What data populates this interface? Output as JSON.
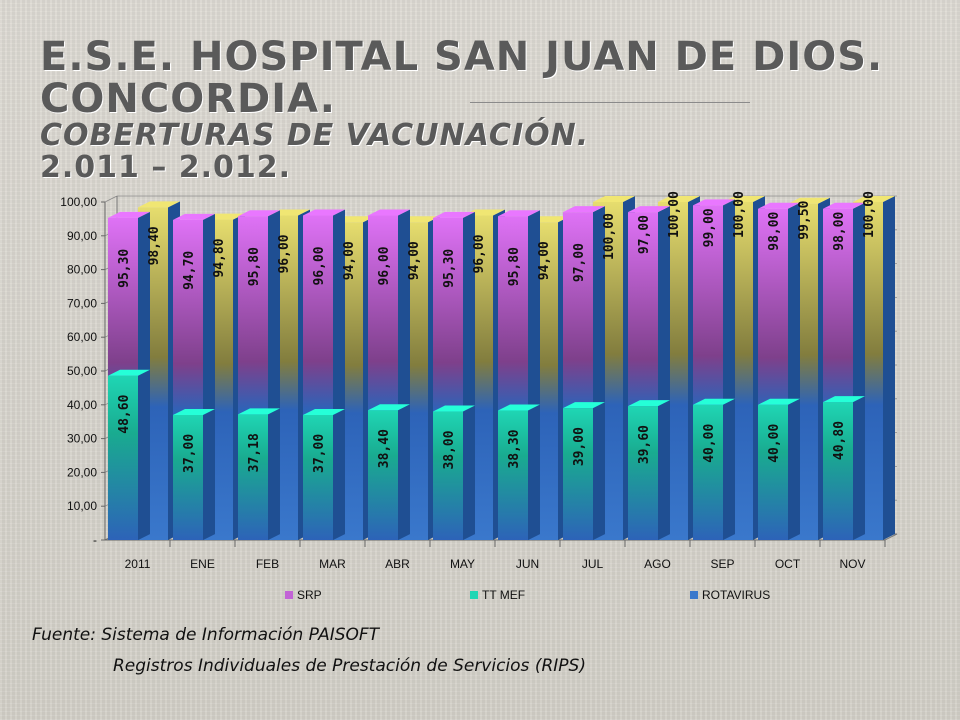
{
  "title": {
    "line1": "E.S.E. HOSPITAL SAN JUAN DE DIOS.  CONCORDIA.",
    "line2": "COBERTURAS DE VACUNACIÓN.",
    "line3": "2.011 – 2.012."
  },
  "source": {
    "line1": "Fuente: Sistema de Información PAISOFT",
    "line2": "Registros Individuales de Prestación de Servicios (RIPS)"
  },
  "chart_data": {
    "type": "bar",
    "categories": [
      "2011",
      "ENE",
      "FEB",
      "MAR",
      "ABR",
      "MAY",
      "JUN",
      "JUL",
      "AGO",
      "SEP",
      "OCT",
      "NOV"
    ],
    "series": [
      {
        "name": "SRP",
        "values": [
          95.3,
          94.7,
          95.8,
          96.0,
          96.0,
          95.3,
          95.8,
          97.0,
          97.0,
          99.0,
          98.0,
          98.0
        ],
        "labels": [
          "95,30",
          "94,70",
          "95,80",
          "96,00",
          "96,00",
          "95,30",
          "95,80",
          "97,00",
          "97,00",
          "99,00",
          "98,00",
          "98,00"
        ],
        "color": "#c263d6"
      },
      {
        "name": "TT MEF",
        "values": [
          48.6,
          37.0,
          37.18,
          37.0,
          38.4,
          38.0,
          38.3,
          39.0,
          39.6,
          40.0,
          40.0,
          40.8
        ],
        "labels": [
          "48,60",
          "37,00",
          "37,18",
          "37,00",
          "38,40",
          "38,00",
          "38,30",
          "39,00",
          "39,60",
          "40,00",
          "40,00",
          "40,80"
        ],
        "color": "#1fd6b4"
      },
      {
        "name": "ROTAVIRUS",
        "values": [
          98.4,
          94.8,
          96.0,
          94.0,
          94.0,
          96.0,
          94.0,
          100.0,
          100.0,
          100.0,
          99.5,
          100.0
        ],
        "labels": [
          "98,40",
          "94,80",
          "96,00",
          "94,00",
          "94,00",
          "96,00",
          "94,00",
          "100,00",
          "100,00",
          "100,00",
          "99,50",
          "100,00"
        ],
        "color": "#c8c060"
      }
    ],
    "ylim": [
      0,
      100
    ],
    "yticks": [
      "-",
      "10,00",
      "20,00",
      "30,00",
      "40,00",
      "50,00",
      "60,00",
      "70,00",
      "80,00",
      "90,00",
      "100,00"
    ],
    "grid": true,
    "legend": "bottom"
  }
}
